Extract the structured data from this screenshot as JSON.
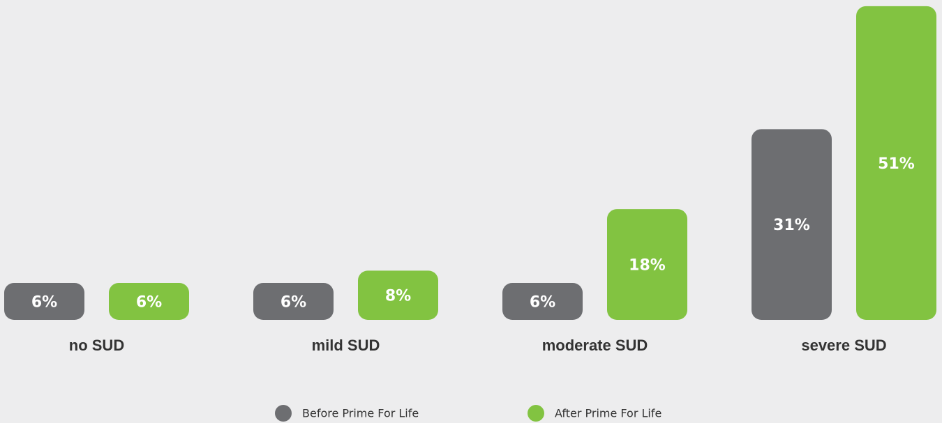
{
  "chart_data": {
    "type": "bar",
    "categories": [
      "no SUD",
      "mild SUD",
      "moderate  SUD",
      "severe SUD"
    ],
    "series": [
      {
        "name": "Before Prime For Life",
        "color": "#6d6e71",
        "values": [
          6,
          6,
          6,
          31
        ],
        "value_labels": [
          "6%",
          "6%",
          "6%",
          "31%"
        ]
      },
      {
        "name": "After Prime For Life",
        "color": "#82c341",
        "values": [
          6,
          8,
          18,
          51
        ],
        "value_labels": [
          "6%",
          "8%",
          "18%",
          "51%"
        ]
      }
    ],
    "ylim": [
      0,
      52
    ]
  }
}
